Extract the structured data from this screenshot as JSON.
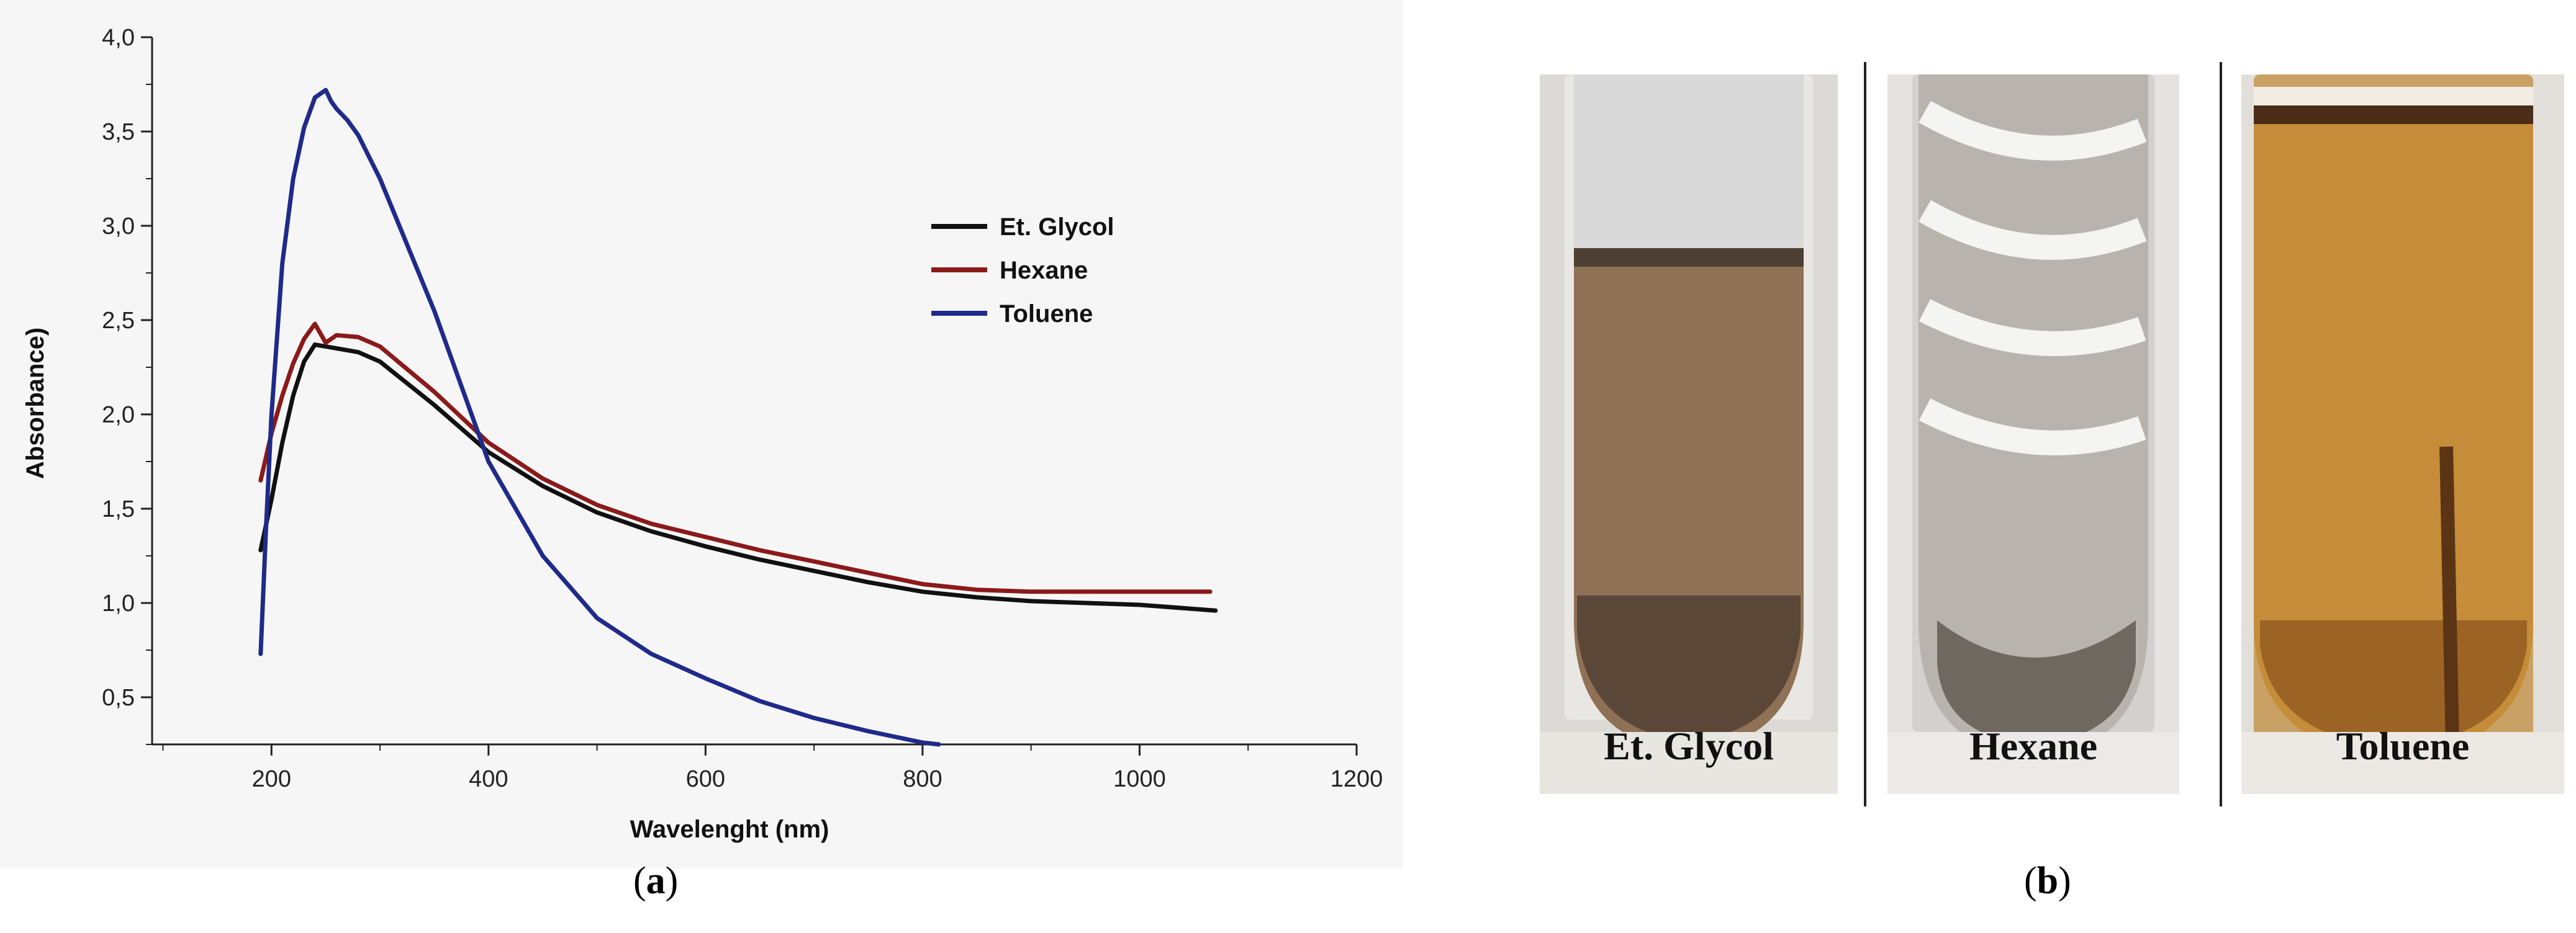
{
  "captions": {
    "a": "a",
    "b": "b"
  },
  "photos": {
    "labels": [
      "Et. Glycol",
      "Hexane",
      "Toluene"
    ]
  },
  "chart_data": {
    "type": "line",
    "xlabel": "Wavelenght (nm)",
    "ylabel": "Absorbance)",
    "xlim": [
      90,
      1200
    ],
    "ylim": [
      0.25,
      4.0
    ],
    "xticks": [
      200,
      400,
      600,
      800,
      1000,
      1200
    ],
    "xtick_labels": [
      "200",
      "400",
      "600",
      "800",
      "1000",
      "1200"
    ],
    "yticks": [
      0.5,
      1.0,
      1.5,
      2.0,
      2.5,
      3.0,
      3.5,
      4.0
    ],
    "ytick_labels": [
      "0,5",
      "1,0",
      "1,5",
      "2,0",
      "2,5",
      "3,0",
      "3,5",
      "4,0"
    ],
    "legend_position": "top-right",
    "grid": false,
    "series": [
      {
        "name": "Et. Glycol",
        "color": "#111111",
        "x": [
          190,
          200,
          210,
          220,
          230,
          240,
          250,
          260,
          280,
          300,
          350,
          400,
          450,
          500,
          550,
          600,
          650,
          700,
          750,
          800,
          850,
          900,
          950,
          1000,
          1070
        ],
        "y": [
          1.28,
          1.55,
          1.85,
          2.1,
          2.28,
          2.37,
          2.36,
          2.35,
          2.33,
          2.28,
          2.05,
          1.8,
          1.62,
          1.48,
          1.38,
          1.3,
          1.23,
          1.17,
          1.11,
          1.06,
          1.03,
          1.01,
          1.0,
          0.99,
          0.96
        ]
      },
      {
        "name": "Hexane",
        "color": "#8b1a1a",
        "x": [
          190,
          200,
          210,
          220,
          230,
          240,
          245,
          250,
          260,
          280,
          300,
          350,
          400,
          450,
          500,
          550,
          600,
          650,
          700,
          750,
          800,
          850,
          900,
          1000,
          1065
        ],
        "y": [
          1.65,
          1.9,
          2.1,
          2.27,
          2.4,
          2.48,
          2.43,
          2.38,
          2.42,
          2.41,
          2.36,
          2.12,
          1.85,
          1.66,
          1.52,
          1.42,
          1.35,
          1.28,
          1.22,
          1.16,
          1.1,
          1.07,
          1.06,
          1.06,
          1.06
        ]
      },
      {
        "name": "Toluene",
        "color": "#1f2a8a",
        "x": [
          190,
          195,
          200,
          210,
          220,
          230,
          240,
          250,
          255,
          260,
          270,
          280,
          300,
          350,
          400,
          450,
          500,
          550,
          600,
          650,
          700,
          750,
          800,
          815
        ],
        "y": [
          0.73,
          1.4,
          2.0,
          2.8,
          3.25,
          3.52,
          3.68,
          3.72,
          3.66,
          3.62,
          3.56,
          3.48,
          3.25,
          2.55,
          1.75,
          1.25,
          0.92,
          0.73,
          0.6,
          0.48,
          0.39,
          0.32,
          0.26,
          0.25
        ]
      }
    ]
  }
}
